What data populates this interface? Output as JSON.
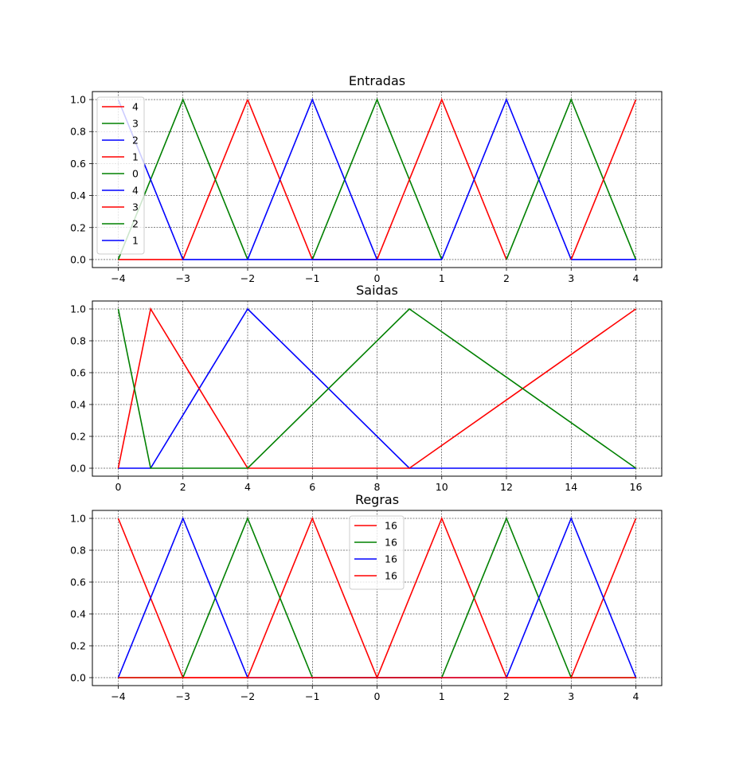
{
  "chart_data": [
    {
      "type": "line",
      "title": "Entradas",
      "xlim": [
        -4.4,
        4.4
      ],
      "ylim": [
        -0.05,
        1.05
      ],
      "xticks": [
        -4,
        -3,
        -2,
        -1,
        0,
        1,
        2,
        3,
        4
      ],
      "xtick_labels": [
        "−4",
        "−3",
        "−2",
        "−1",
        "0",
        "1",
        "2",
        "3",
        "4"
      ],
      "yticks": [
        0.0,
        0.2,
        0.4,
        0.6,
        0.8,
        1.0
      ],
      "ytick_labels": [
        "0.0",
        "0.2",
        "0.4",
        "0.6",
        "0.8",
        "1.0"
      ],
      "grid": true,
      "legend_position": "top-left",
      "series": [
        {
          "name": "4",
          "color": "#ff0000",
          "x": [
            -4,
            -3,
            -2
          ],
          "y": [
            0,
            0,
            1
          ]
        },
        {
          "name": "3",
          "color": "#008000",
          "x": [
            -4,
            -3,
            -2
          ],
          "y": [
            0,
            1,
            0
          ]
        },
        {
          "name": "2",
          "color": "#0000ff",
          "x": [
            -4,
            -3,
            -2
          ],
          "y": [
            1,
            0,
            0
          ]
        },
        {
          "name": "1",
          "color": "#ff0000",
          "x": [
            -2,
            -1,
            0
          ],
          "y": [
            1,
            0,
            0
          ]
        },
        {
          "name": "0",
          "color": "#008000",
          "x": [
            -1,
            0,
            1
          ],
          "y": [
            0,
            1,
            0
          ]
        },
        {
          "name": "4",
          "color": "#0000ff",
          "x": [
            -2,
            -1,
            0
          ],
          "y": [
            0,
            1,
            0
          ]
        },
        {
          "name": "3",
          "color": "#ff0000",
          "x": [
            0,
            1,
            2
          ],
          "y": [
            0,
            1,
            0
          ]
        },
        {
          "name": "2",
          "color": "#008000",
          "x": [
            2,
            3,
            4
          ],
          "y": [
            0,
            1,
            0
          ]
        },
        {
          "name": "1",
          "color": "#0000ff",
          "x": [
            1,
            2,
            3
          ],
          "y": [
            0,
            1,
            0
          ]
        },
        {
          "name": "",
          "color": "#0000ff",
          "x": [
            -2,
            1
          ],
          "y": [
            0,
            0
          ]
        },
        {
          "name": "",
          "color": "#0000ff",
          "x": [
            3,
            4
          ],
          "y": [
            0,
            0
          ]
        },
        {
          "name": "",
          "color": "#ff0000",
          "x": [
            3,
            4
          ],
          "y": [
            0,
            1
          ]
        }
      ]
    },
    {
      "type": "line",
      "title": "Saidas",
      "xlim": [
        -0.8,
        16.8
      ],
      "ylim": [
        -0.05,
        1.05
      ],
      "xticks": [
        0,
        2,
        4,
        6,
        8,
        10,
        12,
        14,
        16
      ],
      "xtick_labels": [
        "0",
        "2",
        "4",
        "6",
        "8",
        "10",
        "12",
        "14",
        "16"
      ],
      "yticks": [
        0.0,
        0.2,
        0.4,
        0.6,
        0.8,
        1.0
      ],
      "ytick_labels": [
        "0.0",
        "0.2",
        "0.4",
        "0.6",
        "0.8",
        "1.0"
      ],
      "grid": true,
      "series": [
        {
          "name": "",
          "color": "#0000ff",
          "x": [
            0,
            1,
            4,
            9,
            16
          ],
          "y": [
            0,
            0,
            1,
            0,
            0
          ]
        },
        {
          "name": "",
          "color": "#ff0000",
          "x": [
            0,
            1,
            4,
            9,
            16
          ],
          "y": [
            0,
            1,
            0,
            0,
            1
          ]
        },
        {
          "name": "",
          "color": "#008000",
          "x": [
            0,
            1,
            4,
            9,
            16
          ],
          "y": [
            1,
            0,
            0,
            1,
            0
          ]
        }
      ]
    },
    {
      "type": "line",
      "title": "Regras",
      "xlim": [
        -4.4,
        4.4
      ],
      "ylim": [
        -0.05,
        1.05
      ],
      "xticks": [
        -4,
        -3,
        -2,
        -1,
        0,
        1,
        2,
        3,
        4
      ],
      "xtick_labels": [
        "−4",
        "−3",
        "−2",
        "−1",
        "0",
        "1",
        "2",
        "3",
        "4"
      ],
      "yticks": [
        0.0,
        0.2,
        0.4,
        0.6,
        0.8,
        1.0
      ],
      "ytick_labels": [
        "0.0",
        "0.2",
        "0.4",
        "0.6",
        "0.8",
        "1.0"
      ],
      "grid": true,
      "legend_position": "top-center",
      "series": [
        {
          "name": "16",
          "color": "#ff0000",
          "x": [
            -4,
            -3,
            -2,
            -1,
            0,
            1,
            2,
            3,
            4
          ],
          "y": [
            1,
            0,
            0,
            1,
            0,
            1,
            0,
            0,
            1
          ]
        },
        {
          "name": "16",
          "color": "#008000",
          "x": [
            -4,
            -3,
            -2,
            -1,
            0,
            1,
            2,
            3,
            4
          ],
          "y": [
            0,
            0,
            1,
            0,
            0,
            0,
            1,
            0,
            0
          ]
        },
        {
          "name": "16",
          "color": "#0000ff",
          "x": [
            -4,
            -3,
            -2,
            -1,
            0,
            1,
            2,
            3,
            4
          ],
          "y": [
            0,
            1,
            0,
            0,
            0,
            0,
            0,
            1,
            0
          ]
        },
        {
          "name": "16",
          "color": "#ff0000",
          "x": [
            -4,
            -3,
            -2,
            -1,
            0,
            1,
            2,
            3,
            4
          ],
          "y": [
            0,
            0,
            0,
            0,
            0,
            0,
            0,
            0,
            0
          ]
        }
      ]
    }
  ]
}
